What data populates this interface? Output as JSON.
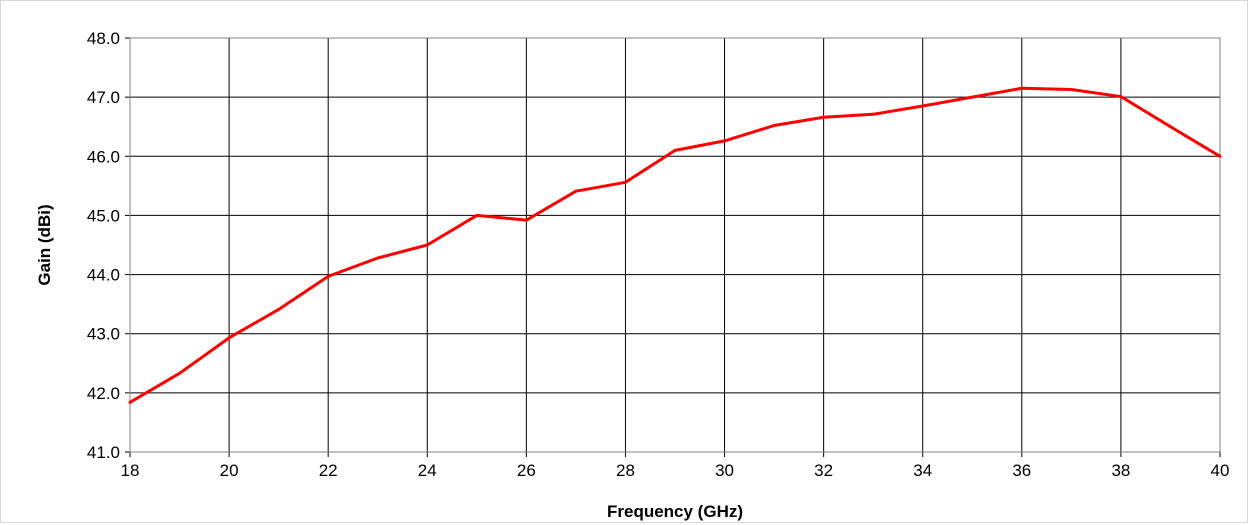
{
  "chart_data": {
    "type": "line",
    "title": "",
    "xlabel": "Frequency (GHz)",
    "ylabel": "Gain (dBi)",
    "xlim": [
      18,
      40
    ],
    "ylim": [
      41.0,
      48.0
    ],
    "x_ticks": [
      "18",
      "20",
      "22",
      "24",
      "26",
      "28",
      "30",
      "32",
      "34",
      "36",
      "38",
      "40"
    ],
    "y_ticks": [
      "41.0",
      "42.0",
      "43.0",
      "44.0",
      "45.0",
      "46.0",
      "47.0",
      "48.0"
    ],
    "grid": true,
    "legend": "none",
    "series": [
      {
        "color": "#ff0000",
        "x": [
          18,
          19,
          20,
          21,
          22,
          23,
          24,
          25,
          26,
          27,
          28,
          29,
          30,
          31,
          32,
          33,
          34,
          35,
          36,
          37,
          38,
          39,
          40
        ],
        "y": [
          41.84,
          42.33,
          42.93,
          43.41,
          43.97,
          44.28,
          44.5,
          45.0,
          44.92,
          45.41,
          45.56,
          46.1,
          46.26,
          46.52,
          46.66,
          46.71,
          46.85,
          47.0,
          47.15,
          47.13,
          47.01,
          46.5,
          46.0
        ]
      }
    ]
  }
}
